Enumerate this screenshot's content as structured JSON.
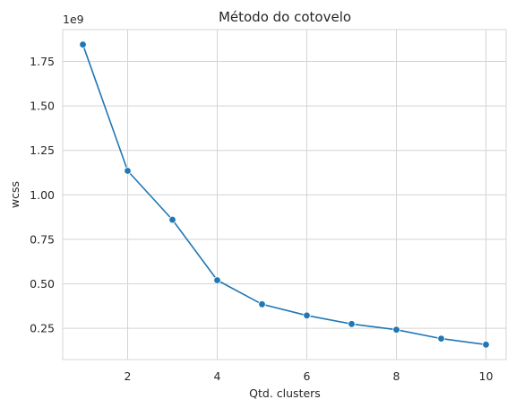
{
  "chart_data": {
    "type": "line",
    "title": "Método do cotovelo",
    "xlabel": "Qtd. clusters",
    "ylabel": "wcss",
    "y_offset_label": "1e9",
    "x": [
      1,
      2,
      3,
      4,
      5,
      6,
      7,
      8,
      9,
      10
    ],
    "series": [
      {
        "values": [
          1.845,
          1.135,
          0.86,
          0.52,
          0.385,
          0.322,
          0.274,
          0.242,
          0.192,
          0.158
        ],
        "color": "#1f77b4"
      }
    ],
    "xticks": [
      2,
      4,
      6,
      8,
      10
    ],
    "xtick_labels": [
      "2",
      "4",
      "6",
      "8",
      "10"
    ],
    "yticks": [
      0.25,
      0.5,
      0.75,
      1.0,
      1.25,
      1.5,
      1.75
    ],
    "ytick_labels": [
      "0.25",
      "0.50",
      "0.75",
      "1.00",
      "1.25",
      "1.50",
      "1.75"
    ],
    "xlim": [
      0.55,
      10.45
    ],
    "ylim": [
      0.074,
      1.929
    ],
    "grid": true,
    "marker": "circle"
  }
}
